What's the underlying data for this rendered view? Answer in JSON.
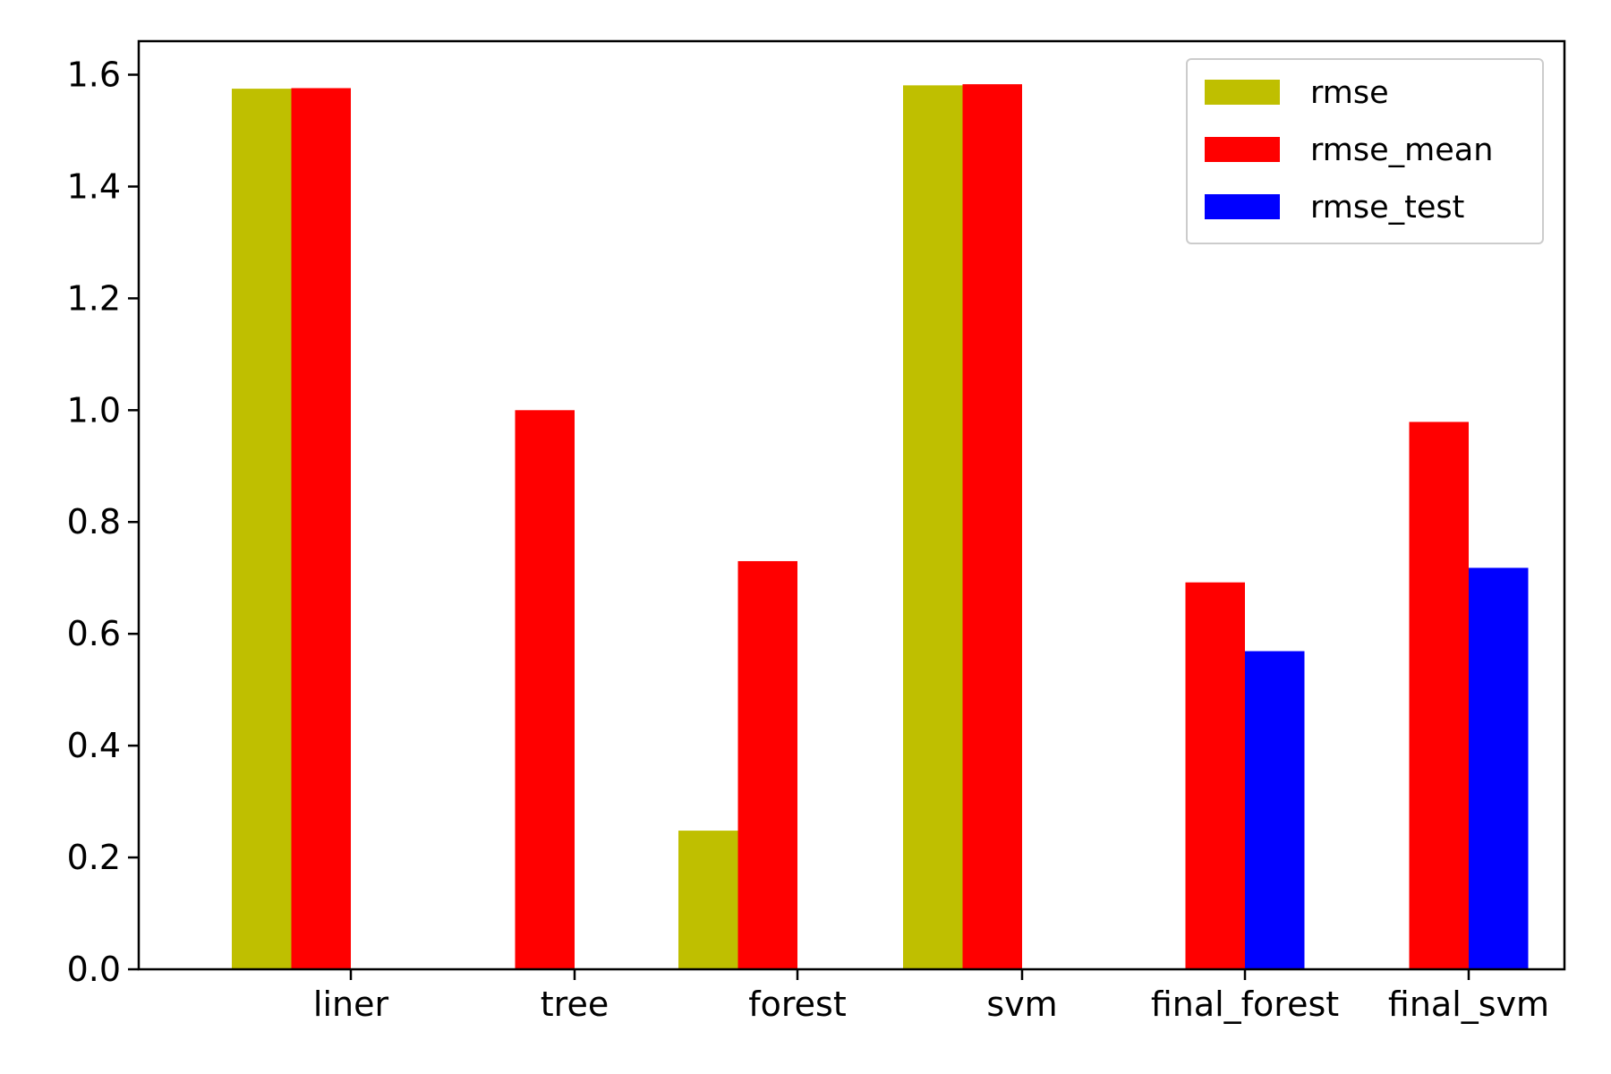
{
  "chart_data": {
    "type": "bar",
    "title": "",
    "xlabel": "",
    "ylabel": "",
    "categories": [
      "liner",
      "tree",
      "forest",
      "svm",
      "final_forest",
      "final_svm"
    ],
    "series": [
      {
        "name": "rmse",
        "color": "#bfbf00",
        "values": [
          1.575,
          0.0,
          0.248,
          1.581,
          null,
          null
        ]
      },
      {
        "name": "rmse_mean",
        "color": "#ff0000",
        "values": [
          1.576,
          1.0,
          0.73,
          1.583,
          0.692,
          0.979
        ]
      },
      {
        "name": "rmse_test",
        "color": "#0000ff",
        "values": [
          null,
          null,
          null,
          null,
          0.569,
          0.718
        ]
      }
    ],
    "ylim": [
      0,
      1.66
    ],
    "yticks": [
      "0.0",
      "0.2",
      "0.4",
      "0.6",
      "0.8",
      "1.0",
      "1.2",
      "1.4",
      "1.6"
    ],
    "grid": false,
    "legend": "top-right"
  }
}
